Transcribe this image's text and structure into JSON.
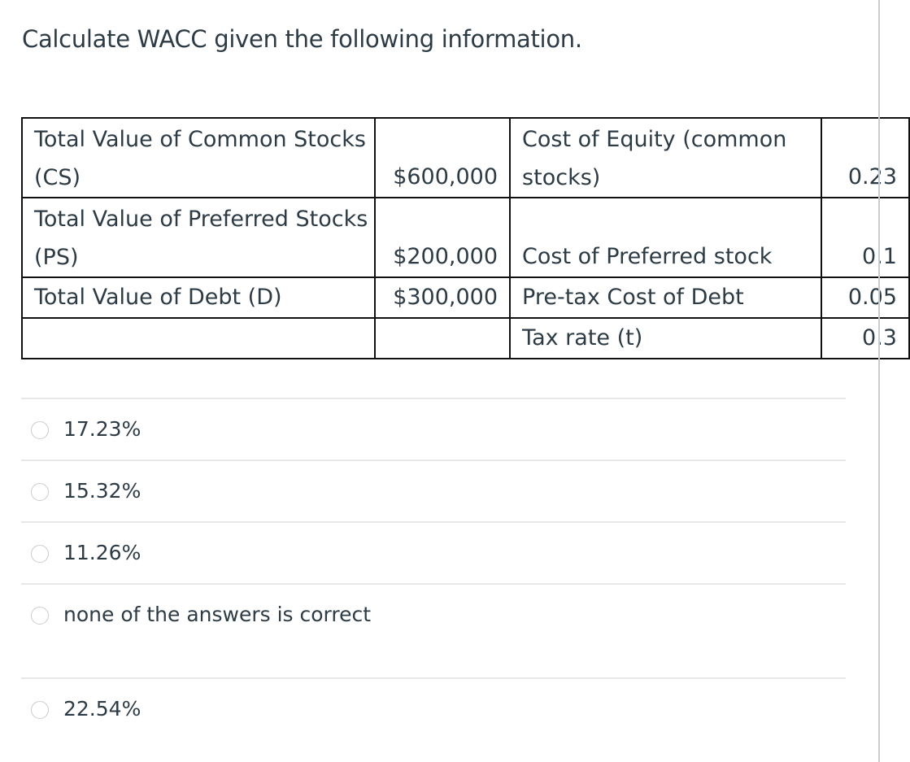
{
  "question": {
    "text": "Calculate WACC given the following information."
  },
  "table": {
    "rows": [
      {
        "label": "Total Value of Common Stocks (CS)",
        "value": "$600,000",
        "cost_label": "Cost of Equity (common stocks)",
        "cost_value": "0.23"
      },
      {
        "label": "Total Value of Preferred Stocks (PS)",
        "value": "$200,000",
        "cost_label": "Cost of Preferred stock",
        "cost_value": "0.1"
      },
      {
        "label": "Total Value of Debt (D)",
        "value": "$300,000",
        "cost_label": "Pre-tax Cost of Debt",
        "cost_value": "0.05"
      },
      {
        "label": "",
        "value": "",
        "cost_label": "Tax rate (t)",
        "cost_value": "0.3"
      }
    ]
  },
  "answers": [
    {
      "label": "17.23%"
    },
    {
      "label": "15.32%"
    },
    {
      "label": "11.26%"
    },
    {
      "label": "none of the answers is correct"
    },
    {
      "label": "22.54%"
    }
  ]
}
